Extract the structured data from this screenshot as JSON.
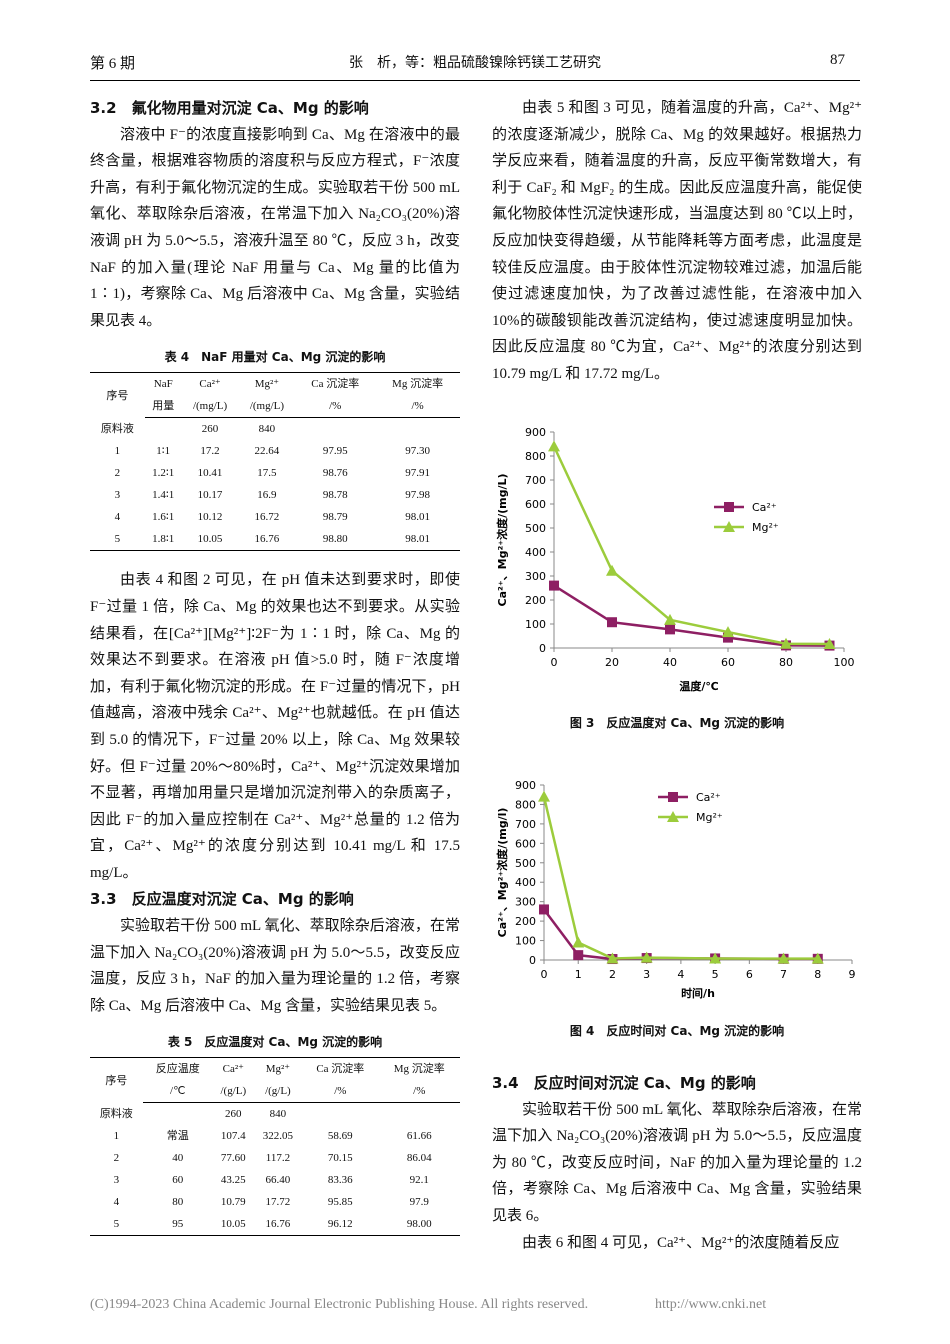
{
  "header": {
    "issue": "第 6 期",
    "running_title": "张　析，等：粗品硫酸镍除钙镁工艺研究",
    "page": "87"
  },
  "section_3_2": {
    "heading": "3.2　氟化物用量对沉淀 Ca、Mg 的影响",
    "paragraphs": [
      "溶液中 F⁻的浓度直接影响到 Ca、Mg 在溶液中的最终含量，根据难容物质的溶度积与反应方程式，F⁻浓度升高，有利于氟化物沉淀的生成。实验取若干份 500 mL 氧化、萃取除杂后溶液，在常温下加入 Na₂CO₃(20%)溶液调 pH 为 5.0～5.5，溶液升温至 80 ℃，反应 3 h，改变 NaF 的加入量(理论 NaF 用量与 Ca、Mg 量的比值为 1∶1)，考察除 Ca、Mg 后溶液中 Ca、Mg 含量，实验结果见表 4。",
      "由表 4 和图 2 可见，在 pH 值未达到要求时，即使 F⁻过量 1 倍，除 Ca、Mg 的效果也达不到要求。从实验结果看，在[Ca²⁺][Mg²⁺]∶2F⁻为 1∶1 时，除 Ca、Mg 的效果达不到要求。在溶液 pH 值>5.0 时，随 F⁻浓度增加，有利于氟化物沉淀的形成。在 F⁻过量的情况下，pH 值越高，溶液中残余 Ca²⁺、Mg²⁺也就越低。在 pH 值达到 5.0 的情况下，F⁻过量 20% 以上，除 Ca、Mg 效果较好。但 F⁻过量 20%～80%时，Ca²⁺、Mg²⁺沉淀效果增加不显著，再增加用量只是增加沉淀剂带入的杂质离子，因此 F⁻的加入量应控制在 Ca²⁺、Mg²⁺总量的 1.2 倍为宜，Ca²⁺、Mg²⁺的浓度分别达到 10.41 mg/L 和 17.5 mg/L。"
    ]
  },
  "table_4": {
    "caption": "表 4　NaF 用量对 Ca、Mg 沉淀的影响",
    "header": [
      [
        "序号",
        "NaF",
        "Ca²⁺",
        "Mg²⁺",
        "Ca 沉淀率",
        "Mg 沉淀率"
      ],
      [
        null,
        "用量",
        "/(mg/L)",
        "/(mg/L)",
        "/%",
        "/%"
      ]
    ],
    "rows": [
      [
        "原料液",
        null,
        "260",
        "840",
        null,
        null
      ],
      [
        "1",
        "1∶1",
        "17.2",
        "22.64",
        "97.95",
        "97.30"
      ],
      [
        "2",
        "1.2∶1",
        "10.41",
        "17.5",
        "98.76",
        "97.91"
      ],
      [
        "3",
        "1.4∶1",
        "10.17",
        "16.9",
        "98.78",
        "97.98"
      ],
      [
        "4",
        "1.6∶1",
        "10.12",
        "16.72",
        "98.79",
        "98.01"
      ],
      [
        "5",
        "1.8∶1",
        "10.05",
        "16.76",
        "98.80",
        "98.01"
      ]
    ]
  },
  "section_3_3": {
    "heading": "3.3　反应温度对沉淀 Ca、Mg 的影响",
    "paragraphs": [
      "实验取若干份 500 mL 氧化、萃取除杂后溶液，在常温下加入 Na₂CO₃(20%)溶液调 pH 为 5.0～5.5，改变反应温度，反应 3 h，NaF 的加入量为理论量的 1.2 倍，考察除 Ca、Mg 后溶液中 Ca、Mg 含量，实验结果见表 5。",
      "由表 5 和图 3 可见，随着温度的升高，Ca²⁺、Mg²⁺的浓度逐渐减少，脱除 Ca、Mg 的效果越好。根据热力学反应来看，随着温度的升高，反应平衡常数增大，有利于 CaF₂ 和 MgF₂ 的生成。因此反应温度升高，能促使氟化物胶体性沉淀快速形成，当温度达到 80 ℃以上时，反应加快变得趋缓，从节能降耗等方面考虑，此温度是较佳反应温度。由于胶体性沉淀物较难过滤，加温后能使过滤速度加快，为了改善过滤性能，在溶液中加入 10%的碳酸钡能改善沉淀结构，使过滤速度明显加快。因此反应温度 80 ℃为宜，Ca²⁺、Mg²⁺的浓度分别达到 10.79 mg/L 和 17.72 mg/L。"
    ]
  },
  "table_5": {
    "caption": "表 5　反应温度对 Ca、Mg 沉淀的影响",
    "header": [
      [
        "序号",
        "反应温度",
        "Ca²⁺",
        "Mg²⁺",
        "Ca 沉淀率",
        "Mg 沉淀率"
      ],
      [
        null,
        "/℃",
        "/(g/L)",
        "/(g/L)",
        "/%",
        "/%"
      ]
    ],
    "rows": [
      [
        "原料液",
        null,
        "260",
        "840",
        null,
        null
      ],
      [
        "1",
        "常温",
        "107.4",
        "322.05",
        "58.69",
        "61.66"
      ],
      [
        "2",
        "40",
        "77.60",
        "117.2",
        "70.15",
        "86.04"
      ],
      [
        "3",
        "60",
        "43.25",
        "66.40",
        "83.36",
        "92.1"
      ],
      [
        "4",
        "80",
        "10.79",
        "17.72",
        "95.85",
        "97.9"
      ],
      [
        "5",
        "95",
        "10.05",
        "16.76",
        "96.12",
        "98.00"
      ]
    ]
  },
  "section_3_4": {
    "heading": "3.4　反应时间对沉淀 Ca、Mg 的影响",
    "paragraphs": [
      "实验取若干份 500 mL 氧化、萃取除杂后溶液，在常温下加入 Na₂CO₃(20%)溶液调 pH 为 5.0～5.5，反应温度为 80 ℃，改变反应时间，NaF 的加入量为理论量的 1.2 倍，考察除 Ca、Mg 后溶液中 Ca、Mg 含量，实验结果见表 6。",
      "由表 6 和图 4 可见，Ca²⁺、Mg²⁺的浓度随着反应"
    ]
  },
  "chart_data": [
    {
      "type": "line",
      "title": "图 3　反应温度对 Ca、Mg 沉淀的影响",
      "x_label": "温度/℃",
      "y_label": "Ca²⁺、Mg²⁺浓度/(mg/L)",
      "x": [
        0,
        20,
        40,
        60,
        80,
        95
      ],
      "series": [
        {
          "name": "Ca²⁺",
          "color": "#8e1f63",
          "marker": "square",
          "values": [
            260,
            107.4,
            77.6,
            43.25,
            10.79,
            10.05
          ]
        },
        {
          "name": "Mg²⁺",
          "color": "#9ccc3c",
          "marker": "triangle",
          "values": [
            840,
            322.05,
            117.2,
            66.4,
            17.72,
            16.76
          ]
        }
      ],
      "xlim": [
        0,
        100
      ],
      "xticks": [
        0,
        20,
        40,
        60,
        80,
        100
      ],
      "ylim": [
        0,
        900
      ],
      "yticks": [
        0,
        100,
        200,
        300,
        400,
        500,
        600,
        700,
        800,
        900
      ],
      "grid": false,
      "legend": "right"
    },
    {
      "type": "line",
      "title": "图 4　反应时间对 Ca、Mg 沉淀的影响",
      "x_label": "时间/h",
      "y_label": "Ca²⁺、Mg²⁺浓度/(mg/l)",
      "x": [
        0,
        1,
        2,
        3,
        5,
        7,
        8
      ],
      "series": [
        {
          "name": "Ca²⁺",
          "color": "#8e1f63",
          "marker": "square",
          "values": [
            260,
            25,
            5,
            10,
            8,
            6,
            6
          ]
        },
        {
          "name": "Mg²⁺",
          "color": "#9ccc3c",
          "marker": "triangle",
          "values": [
            840,
            90,
            8,
            12,
            8,
            7,
            7
          ]
        }
      ],
      "xlim": [
        0,
        9
      ],
      "xticks": [
        0,
        1,
        2,
        3,
        4,
        5,
        6,
        7,
        8,
        9
      ],
      "ylim": [
        0,
        900
      ],
      "yticks": [
        0,
        100,
        200,
        300,
        400,
        500,
        600,
        700,
        800,
        900
      ],
      "grid": false,
      "legend": "top"
    }
  ],
  "footer": {
    "copyright": "(C)1994-2023 China Academic Journal Electronic Publishing House. All rights reserved.",
    "url": "http://www.cnki.net"
  }
}
